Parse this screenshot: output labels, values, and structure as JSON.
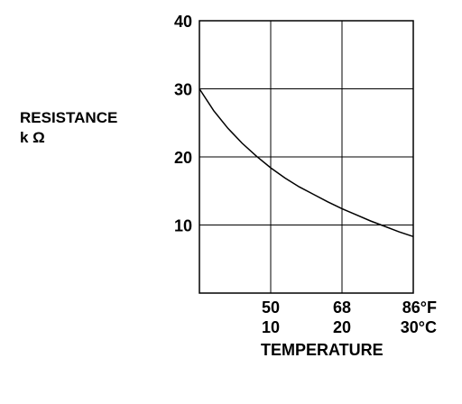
{
  "chart_data": {
    "type": "line",
    "ylabel_line1": "RESISTANCE",
    "ylabel_line2": "k Ω",
    "xlabel": "TEMPERATURE",
    "xlim": [
      0,
      30
    ],
    "ylim": [
      0,
      40
    ],
    "grid": true,
    "y_ticks": [
      {
        "value": 10,
        "label": "10"
      },
      {
        "value": 20,
        "label": "20"
      },
      {
        "value": 30,
        "label": "30"
      },
      {
        "value": 40,
        "label": "40"
      }
    ],
    "x_ticks": [
      {
        "value": 10,
        "label_f": "50",
        "label_c": "10"
      },
      {
        "value": 20,
        "label_f": "68",
        "label_c": "20"
      },
      {
        "value": 30,
        "label_f": "86°F",
        "label_c": "30°C"
      }
    ],
    "series": [
      {
        "x": [
          0,
          2,
          4,
          6,
          8,
          10,
          12,
          14,
          16,
          18,
          20,
          22,
          24,
          26,
          28,
          30
        ],
        "y": [
          30.0,
          26.8,
          24.2,
          22.0,
          20.1,
          18.4,
          16.9,
          15.6,
          14.5,
          13.4,
          12.4,
          11.5,
          10.6,
          9.8,
          9.0,
          8.3
        ]
      }
    ]
  }
}
